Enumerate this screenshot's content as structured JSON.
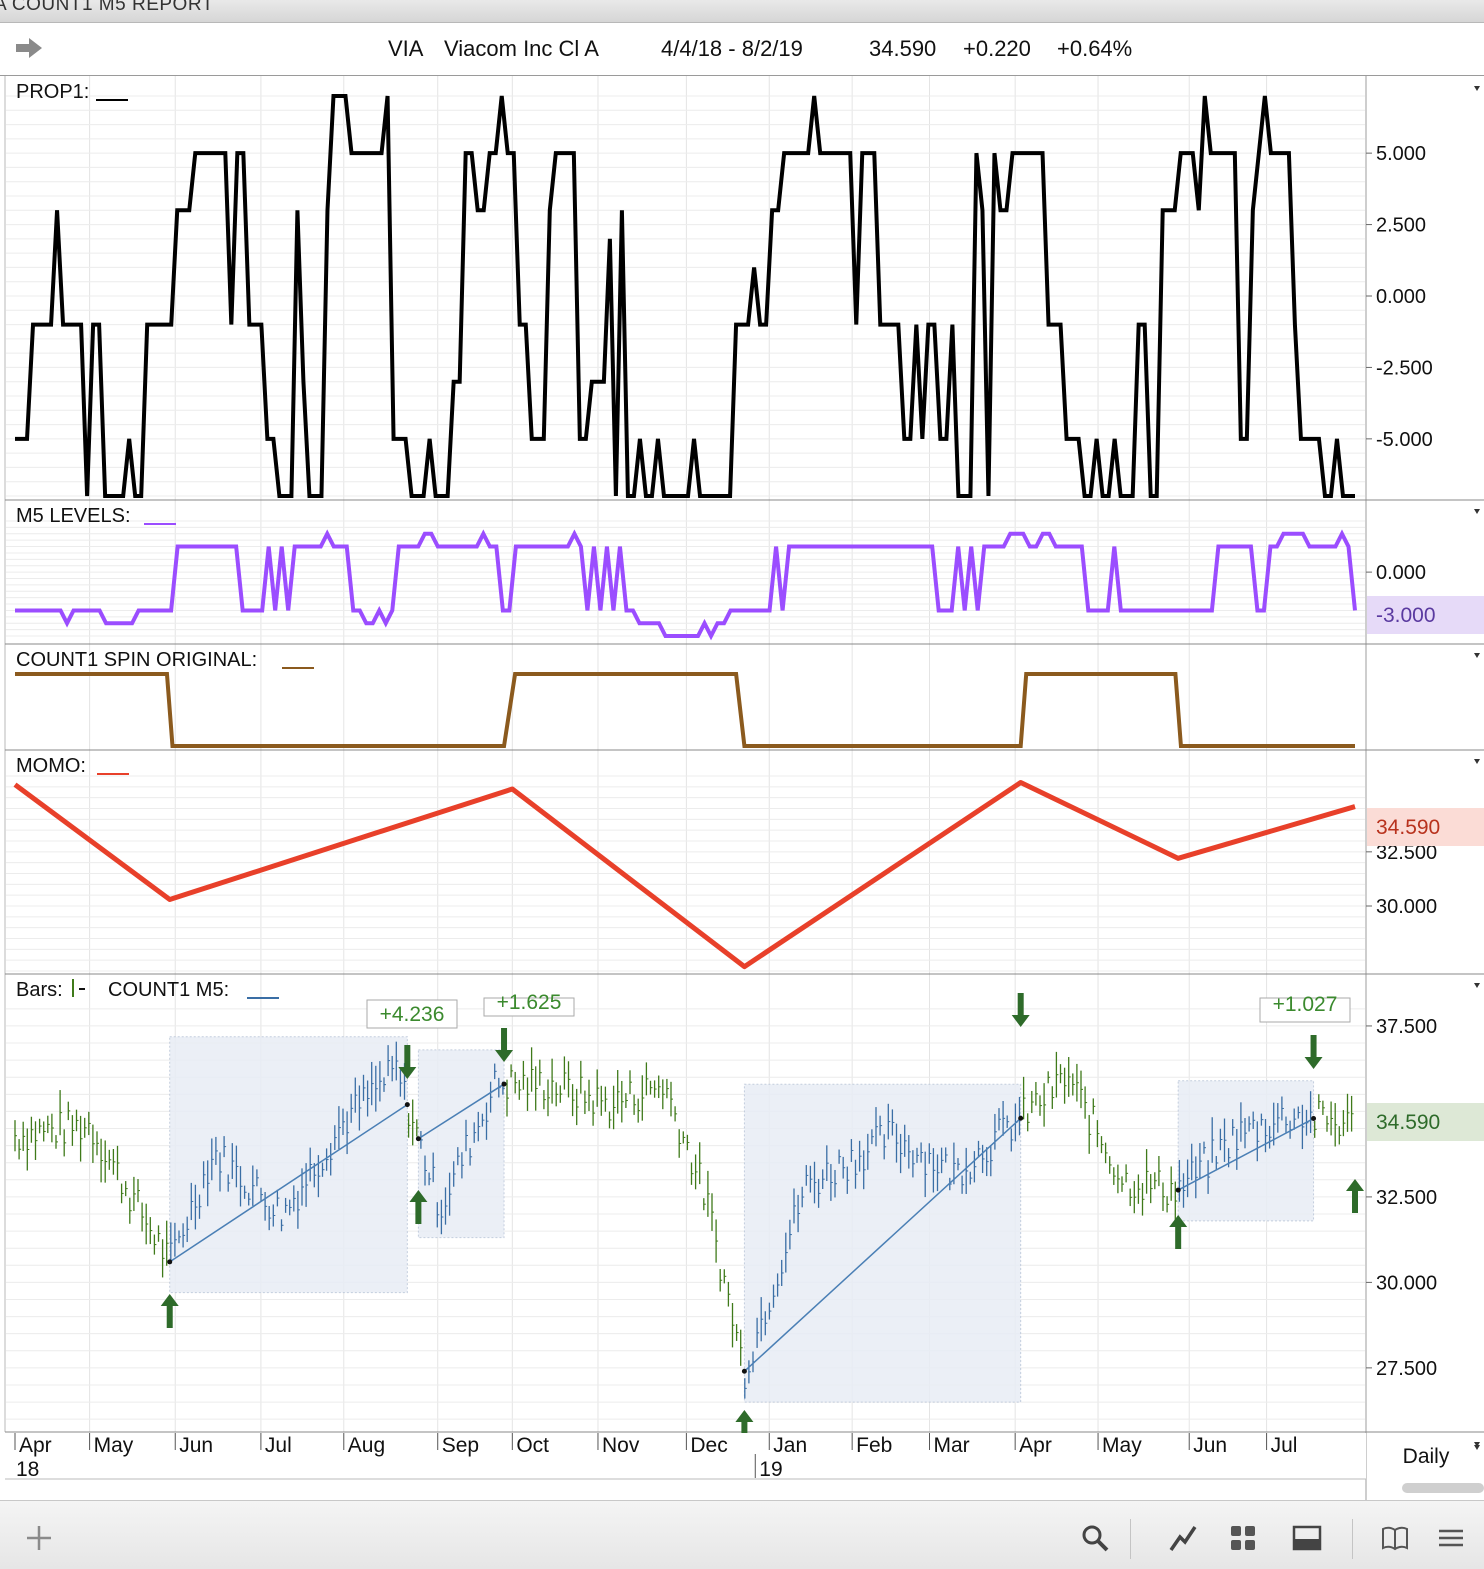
{
  "window": {
    "title": "A COUNT1 M5 REPORT"
  },
  "header": {
    "symbol": "VIA",
    "name": "Viacom Inc Cl A",
    "date_range": "4/4/18 - 8/2/19",
    "last": "34.590",
    "change": "+0.220",
    "change_pct": "+0.64%"
  },
  "panels": {
    "prop1": {
      "label": "PROP1:",
      "ticks": [
        "5.000",
        "2.500",
        "0.000",
        "-2.500",
        "-5.000"
      ]
    },
    "m5": {
      "label": "M5 LEVELS:",
      "ticks": [
        "0.000"
      ],
      "last_value": "-3.000"
    },
    "count1": {
      "label": "COUNT1 SPIN ORIGINAL:"
    },
    "momo": {
      "label": "MOMO:",
      "ticks": [
        "32.500",
        "30.000"
      ],
      "last_value": "34.590"
    },
    "bars": {
      "label": "Bars:",
      "label2": "COUNT1 M5:",
      "ticks": [
        "37.500",
        "32.500",
        "30.000",
        "27.500"
      ],
      "last_value": "34.590",
      "annotations": [
        "+4.236",
        "+1.625",
        "+1.027"
      ]
    }
  },
  "x_axis": {
    "months": [
      "Apr",
      "May",
      "Jun",
      "Jul",
      "Aug",
      "Sep",
      "Oct",
      "Nov",
      "Dec",
      "Jan",
      "Feb",
      "Mar",
      "Apr",
      "May",
      "Jun",
      "Jul"
    ],
    "years": [
      "18",
      "19"
    ],
    "period": "Daily"
  },
  "colors": {
    "prop1": "#000000",
    "m5": "#9b4dff",
    "count1": "#8b5a1e",
    "momo": "#e8402a",
    "bar_up": "#3a6ea5",
    "bar_down": "#3f7a1a",
    "arrow": "#2e6b2a",
    "box": "#e6ebf3"
  },
  "toolbar": {
    "icons": [
      "plus-icon",
      "search-icon",
      "draw-line-icon",
      "grid-icon",
      "panel-icon",
      "book-icon",
      "menu-icon"
    ]
  },
  "chart_data": [
    {
      "type": "line",
      "title": "PROP1",
      "y": [
        -5,
        -5,
        -5,
        -1,
        -1,
        -1,
        -1,
        3,
        -1,
        -1,
        -1,
        -1,
        -7,
        -1,
        -1,
        -7,
        -7,
        -7,
        -7,
        -5,
        -7,
        -7,
        -1,
        -1,
        -1,
        -1,
        -1,
        3,
        3,
        3,
        5,
        5,
        5,
        5,
        5,
        5,
        -1,
        5,
        5,
        -1,
        -1,
        -1,
        -5,
        -5,
        -7,
        -7,
        -7,
        3,
        -3,
        -7,
        -7,
        -7,
        3,
        7,
        7,
        7,
        5,
        5,
        5,
        5,
        5,
        5,
        7,
        -5,
        -5,
        -5,
        -7,
        -7,
        -7,
        -5,
        -7,
        -7,
        -7,
        -3,
        -3,
        5,
        5,
        3,
        3,
        5,
        5,
        7,
        5,
        5,
        -1,
        -1,
        -5,
        -5,
        -5,
        3,
        5,
        5,
        5,
        5,
        -5,
        -5,
        -3,
        -3,
        -3,
        2,
        -7,
        3,
        -7,
        -7,
        -5,
        -7,
        -7,
        -5,
        -7,
        -7,
        -7,
        -7,
        -7,
        -5,
        -7,
        -7,
        -7,
        -7,
        -7,
        -7,
        -1,
        -1,
        -1,
        1,
        -1,
        -1,
        3,
        3,
        5,
        5,
        5,
        5,
        5,
        7,
        5,
        5,
        5,
        5,
        5,
        5,
        -1,
        5,
        5,
        5,
        -1,
        -1,
        -1,
        -1,
        -5,
        -5,
        -1,
        -5,
        -1,
        -1,
        -5,
        -5,
        -1,
        -7,
        -7,
        -7,
        5,
        3,
        -7,
        5,
        3,
        3,
        5,
        5,
        5,
        5,
        5,
        5,
        -1,
        -1,
        -1,
        -5,
        -5,
        -5,
        -7,
        -7,
        -5,
        -7,
        -7,
        -5,
        -7,
        -7,
        -7,
        -1,
        -1,
        -7,
        -7,
        3,
        3,
        3,
        5,
        5,
        5,
        3,
        7,
        5,
        5,
        5,
        5,
        5,
        -5,
        -5,
        3,
        5,
        7,
        5,
        5,
        5,
        5,
        -1,
        -5,
        -5,
        -5,
        -5,
        -7,
        -7,
        -5,
        -7,
        -7,
        -7
      ],
      "ylim": [
        -7,
        7
      ]
    },
    {
      "type": "line",
      "title": "M5 LEVELS",
      "y": [
        -3,
        -3,
        -3,
        -3,
        -3,
        -3,
        -3,
        -3,
        -4,
        -3,
        -3,
        -3,
        -3,
        -3,
        -4,
        -4,
        -4,
        -4,
        -4,
        -3,
        -3,
        -3,
        -3,
        -3,
        -3,
        2,
        2,
        2,
        2,
        2,
        2,
        2,
        2,
        2,
        2,
        -3,
        -3,
        -3,
        -3,
        2,
        -3,
        2,
        -3,
        2,
        2,
        2,
        2,
        2,
        3,
        2,
        2,
        2,
        -3,
        -3,
        -4,
        -4,
        -3,
        -4,
        -3,
        2,
        2,
        2,
        2,
        3,
        3,
        2,
        2,
        2,
        2,
        2,
        2,
        2,
        3,
        2,
        2,
        -3,
        -3,
        2,
        2,
        2,
        2,
        2,
        2,
        2,
        2,
        2,
        3,
        2,
        -3,
        2,
        -3,
        2,
        -3,
        2,
        -3,
        -3,
        -4,
        -4,
        -4,
        -4,
        -5,
        -5,
        -5,
        -5,
        -5,
        -5,
        -4,
        -5,
        -4,
        -4,
        -3,
        -3,
        -3,
        -3,
        -3,
        -3,
        -3,
        2,
        -3,
        2,
        2,
        2,
        2,
        2,
        2,
        2,
        2,
        2,
        2,
        2,
        2,
        2,
        2,
        2,
        2,
        2,
        2,
        2,
        2,
        2,
        2,
        2,
        -3,
        -3,
        -3,
        2,
        -3,
        2,
        -3,
        2,
        2,
        2,
        2,
        3,
        3,
        3,
        2,
        2,
        3,
        3,
        2,
        2,
        2,
        2,
        2,
        -3,
        -3,
        -3,
        -3,
        2,
        -3,
        -3,
        -3,
        -3,
        -3,
        -3,
        -3,
        -3,
        -3,
        -3,
        -3,
        -3,
        -3,
        -3,
        -3,
        2,
        2,
        2,
        2,
        2,
        2,
        -3,
        -3,
        2,
        2,
        3,
        3,
        3,
        3,
        2,
        2,
        2,
        2,
        2,
        3,
        2,
        -3
      ],
      "ylim": [
        -5,
        4
      ],
      "last": -3.0
    },
    {
      "type": "line",
      "title": "COUNT1 SPIN ORIGINAL",
      "x": [
        "2018-04-04",
        "2018-05-29",
        "2018-05-31",
        "2018-09-28",
        "2018-10-02",
        "2018-12-21",
        "2018-12-24",
        "2019-04-03",
        "2019-04-05",
        "2019-05-29",
        "2019-05-31",
        "2019-08-02"
      ],
      "y": [
        1,
        1,
        0,
        0,
        1,
        1,
        0,
        0,
        1,
        1,
        0,
        0
      ]
    },
    {
      "type": "line",
      "title": "MOMO",
      "x": [
        "2018-04-04",
        "2018-05-30",
        "2018-10-01",
        "2018-12-24",
        "2019-04-03",
        "2019-05-30",
        "2019-08-02"
      ],
      "y": [
        35.6,
        30.3,
        35.4,
        27.2,
        35.7,
        32.2,
        34.59
      ],
      "ylim": [
        27.0,
        36.0
      ]
    },
    {
      "type": "bar",
      "title": "Bars / COUNT1 M5",
      "series": [
        {
          "name": "VIA",
          "x": [
            "2018-04-04",
            "2018-05-01",
            "2018-05-30",
            "2018-06-15",
            "2018-07-10",
            "2018-08-01",
            "2018-08-20",
            "2018-09-05",
            "2018-09-25",
            "2018-10-15",
            "2018-11-05",
            "2018-11-25",
            "2018-12-10",
            "2018-12-24",
            "2019-01-15",
            "2019-02-15",
            "2019-03-10",
            "2019-04-03",
            "2019-04-20",
            "2019-05-10",
            "2019-05-30",
            "2019-06-20",
            "2019-07-10",
            "2019-08-02"
          ],
          "close": [
            34.3,
            34.6,
            30.6,
            33.8,
            32.0,
            34.7,
            36.2,
            32.2,
            35.8,
            35.8,
            35.2,
            35.8,
            32.5,
            27.4,
            32.8,
            34.3,
            33.2,
            34.8,
            36.0,
            33.0,
            32.7,
            34.3,
            34.9,
            34.59
          ]
        }
      ],
      "regression_boxes": [
        {
          "start": "2018-05-30",
          "end": "2018-08-24",
          "gain": 4.236
        },
        {
          "start": "2018-08-28",
          "end": "2018-09-28",
          "gain": 1.625
        },
        {
          "start": "2018-12-24",
          "end": "2019-04-03",
          "gain": null
        },
        {
          "start": "2019-05-30",
          "end": "2019-07-18",
          "gain": 1.027
        }
      ],
      "ylim": [
        25.8,
        38.2
      ]
    }
  ]
}
